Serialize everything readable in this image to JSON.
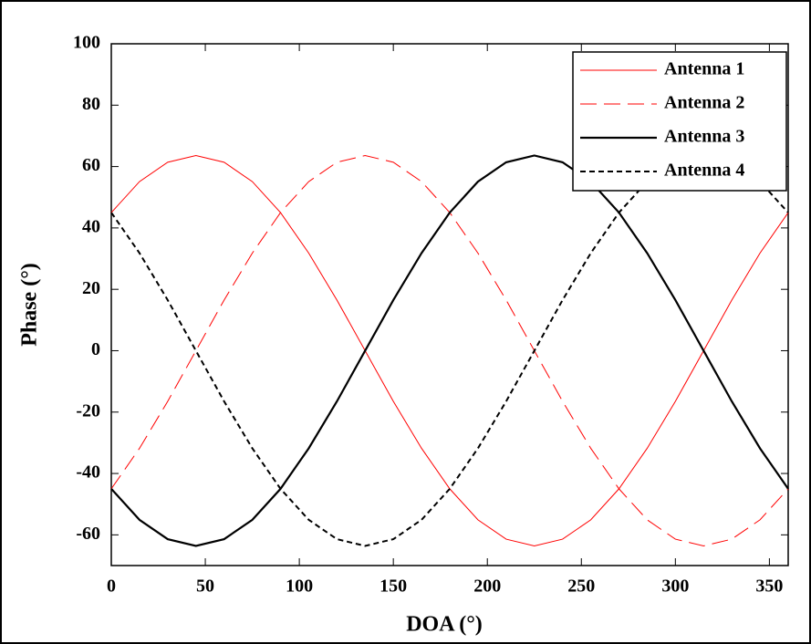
{
  "chart_data": {
    "type": "line",
    "xlabel": "DOA (°)",
    "ylabel": "Phase (°)",
    "x": [
      0,
      15,
      30,
      45,
      60,
      75,
      90,
      105,
      120,
      135,
      150,
      165,
      180,
      195,
      210,
      225,
      240,
      255,
      270,
      285,
      300,
      315,
      330,
      345,
      360
    ],
    "xlim": [
      0,
      360
    ],
    "xticks": [
      0,
      50,
      100,
      150,
      200,
      250,
      300,
      350
    ],
    "ylim": [
      -70,
      100
    ],
    "yticks": [
      -60,
      -40,
      -20,
      0,
      20,
      40,
      60,
      80,
      100
    ],
    "legend": "upper right",
    "series": [
      {
        "name": "Antenna 1",
        "color": "#ff0000",
        "linestyle": "solid",
        "linewidth": 1,
        "values": [
          45.0,
          55.1,
          61.4,
          63.6,
          61.4,
          55.1,
          45.0,
          31.8,
          16.5,
          0,
          -16.5,
          -31.8,
          -45.0,
          -55.1,
          -61.4,
          -63.6,
          -61.4,
          -55.1,
          -45.0,
          -31.8,
          -16.5,
          0,
          16.5,
          31.8,
          45.0
        ]
      },
      {
        "name": "Antenna 2",
        "color": "#ff0000",
        "linestyle": "dashed",
        "linewidth": 1,
        "values": [
          -45.0,
          -31.8,
          -16.5,
          0,
          16.5,
          31.8,
          45.0,
          55.1,
          61.4,
          63.6,
          61.4,
          55.1,
          45.0,
          31.8,
          16.5,
          0,
          -16.5,
          -31.8,
          -45.0,
          -55.1,
          -61.4,
          -63.6,
          -61.4,
          -55.1,
          -45.0
        ]
      },
      {
        "name": "Antenna 3",
        "color": "#000000",
        "linestyle": "solid",
        "linewidth": 2.2,
        "values": [
          -45.0,
          -55.1,
          -61.4,
          -63.6,
          -61.4,
          -55.1,
          -45.0,
          -31.8,
          -16.5,
          0,
          16.5,
          31.8,
          45.0,
          55.1,
          61.4,
          63.6,
          61.4,
          55.1,
          45.0,
          31.8,
          16.5,
          0,
          -16.5,
          -31.8,
          -45.0
        ]
      },
      {
        "name": "Antenna 4",
        "color": "#000000",
        "linestyle": "dashed",
        "linewidth": 2,
        "values": [
          45.0,
          31.8,
          16.5,
          0,
          -16.5,
          -31.8,
          -45.0,
          -55.1,
          -61.4,
          -63.6,
          -61.4,
          -55.1,
          -45.0,
          -31.8,
          -16.5,
          0,
          16.5,
          31.8,
          45.0,
          55.1,
          61.4,
          63.6,
          61.4,
          55.1,
          45.0
        ]
      }
    ]
  }
}
